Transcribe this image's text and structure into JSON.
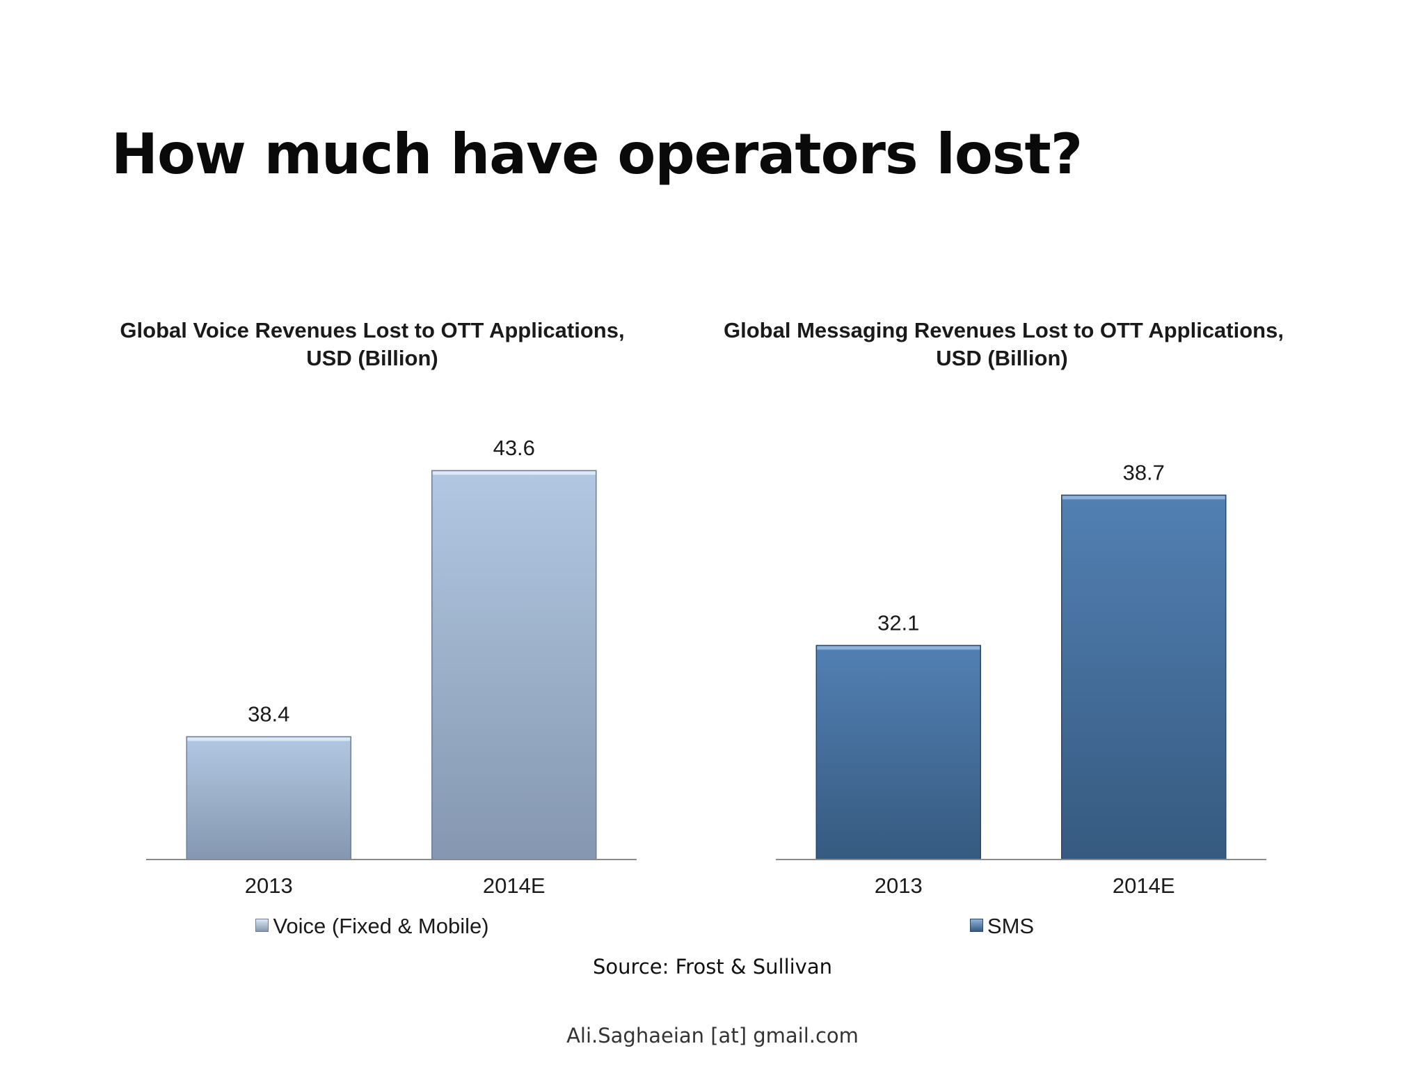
{
  "slide": {
    "title": "How much have operators lost?",
    "source": "Source: Frost & Sullivan",
    "footer": "Ali.Saghaeian [at] gmail.com"
  },
  "chart_data": [
    {
      "type": "bar",
      "title_lines": [
        "Global Voice Revenues Lost to OTT Applications,",
        "USD (Billion)"
      ],
      "categories": [
        "2013",
        "2014E"
      ],
      "series": [
        {
          "name": "Voice (Fixed & Mobile)",
          "values": [
            38.4,
            43.6
          ]
        }
      ],
      "data_labels": [
        "38.4",
        "43.6"
      ],
      "ylim": [
        36,
        44.5
      ],
      "grid": false,
      "legend": "bottom",
      "colors": {
        "top": "#b2c8e2",
        "bottom": "#8597b0",
        "edge": "#6d7f98",
        "cap": "#dbe8f5"
      }
    },
    {
      "type": "bar",
      "title_lines": [
        "Global Messaging Revenues Lost to OTT Applications,",
        "USD (Billion)"
      ],
      "categories": [
        "2013",
        "2014E"
      ],
      "series": [
        {
          "name": "SMS",
          "values": [
            32.1,
            38.7
          ]
        }
      ],
      "data_labels": [
        "32.1",
        "38.7"
      ],
      "ylim": [
        22.7,
        41.8
      ],
      "grid": false,
      "legend": "bottom",
      "colors": {
        "top": "#5280b3",
        "bottom": "#365a80",
        "edge": "#2a4868",
        "cap": "#8fb3d8"
      }
    }
  ]
}
